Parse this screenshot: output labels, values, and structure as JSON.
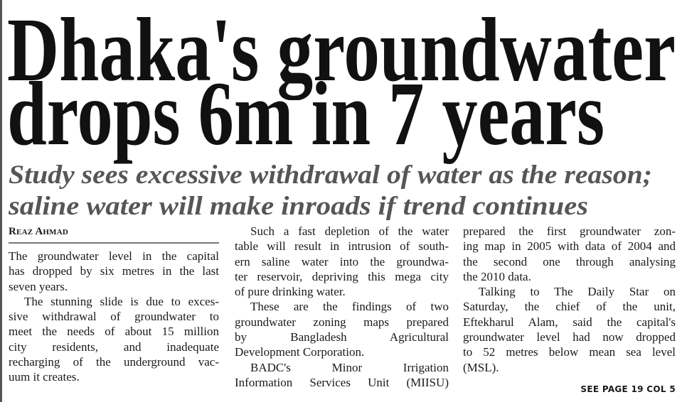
{
  "headline": {
    "line1": "Dhaka's groundwater",
    "line2": "drops 6m in 7 years"
  },
  "subhead": {
    "line1": "Study sees excessive withdrawal of water as the reason;",
    "line2": "saline water will make inroads if trend continues"
  },
  "byline": "Reaz Ahmad",
  "columns": [
    {
      "paragraphs": [
        {
          "indent": false,
          "lines": [
            "The groundwater level in the capital",
            "has dropped by six metres in the last",
            "seven years."
          ]
        },
        {
          "indent": true,
          "lines": [
            "The stunning slide is due to exces-",
            "sive withdrawal of groundwater to",
            "meet the needs of about 15 million",
            "city residents, and inadequate",
            "recharging of the underground vac-",
            "uum it creates."
          ]
        }
      ]
    },
    {
      "paragraphs": [
        {
          "indent": true,
          "lines": [
            "Such a fast depletion of the water",
            "table will result in intrusion of south-",
            "ern saline water into the groundwa-",
            "ter reservoir, depriving this mega city",
            "of pure drinking water."
          ]
        },
        {
          "indent": true,
          "lines": [
            "These are the findings of two",
            "groundwater zoning maps prepared",
            "by Bangladesh Agricultural",
            "Development Corporation."
          ]
        },
        {
          "indent": true,
          "continues": true,
          "lines": [
            "BADC's Minor Irrigation",
            "Information Services Unit (MIISU)"
          ]
        }
      ]
    },
    {
      "paragraphs": [
        {
          "indent": false,
          "lines": [
            "prepared the first groundwater zon-",
            "ing map in 2005 with data of 2004 and",
            "the second one through analysing",
            "the 2010 data."
          ]
        },
        {
          "indent": true,
          "lines": [
            "Talking to The Daily Star on",
            "Saturday, the chief of the unit,",
            "Eftekharul Alam, said the capital's",
            "groundwater level had now dropped",
            "to 52 metres below mean sea level",
            "(MSL)."
          ]
        }
      ]
    }
  ],
  "jump": "SEE PAGE 19 COL 5"
}
